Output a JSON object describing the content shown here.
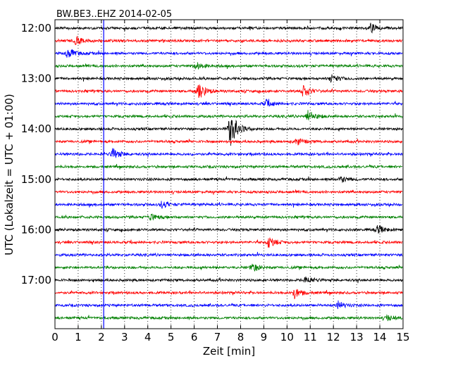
{
  "chart_data": {
    "type": "line",
    "title": "BW.BE3..EHZ 2014-02-05",
    "xlabel": "Zeit  [min]",
    "ylabel": "UTC (Lokalzeit = UTC + 01:00)",
    "xlim": [
      0,
      15
    ],
    "x_ticks": [
      "0",
      "1",
      "2",
      "3",
      "4",
      "5",
      "6",
      "7",
      "8",
      "9",
      "10",
      "11",
      "12",
      "13",
      "14",
      "15"
    ],
    "y_tick_labels": [
      "12:00",
      "13:00",
      "14:00",
      "15:00",
      "16:00",
      "17:00"
    ],
    "grid": "vertical dotted",
    "trace_colors": [
      "#000000",
      "#ff0000",
      "#0000ff",
      "#008000"
    ],
    "trace_start_times": [
      "12:00",
      "12:15",
      "12:30",
      "12:45",
      "13:00",
      "13:15",
      "13:30",
      "13:45",
      "14:00",
      "14:15",
      "14:30",
      "14:45",
      "15:00",
      "15:15",
      "15:30",
      "15:45",
      "16:00",
      "16:15",
      "16:30",
      "16:45",
      "17:00",
      "17:15",
      "17:30",
      "17:45"
    ],
    "marker_line_x": 2.1,
    "marker_line_color": "#0000ff",
    "events": [
      {
        "trace": 0,
        "x": 13.6,
        "amp": 0.35
      },
      {
        "trace": 1,
        "x": 0.9,
        "amp": 0.35
      },
      {
        "trace": 2,
        "x": 0.55,
        "amp": 0.45
      },
      {
        "trace": 3,
        "x": 6.1,
        "amp": 0.3
      },
      {
        "trace": 4,
        "x": 11.9,
        "amp": 0.35
      },
      {
        "trace": 5,
        "x": 6.2,
        "amp": 0.7
      },
      {
        "trace": 5,
        "x": 10.7,
        "amp": 0.5
      },
      {
        "trace": 6,
        "x": 9.1,
        "amp": 0.3
      },
      {
        "trace": 7,
        "x": 10.9,
        "amp": 0.5
      },
      {
        "trace": 8,
        "x": 7.55,
        "amp": 1.6
      },
      {
        "trace": 9,
        "x": 10.4,
        "amp": 0.3
      },
      {
        "trace": 10,
        "x": 2.5,
        "amp": 0.45
      },
      {
        "trace": 12,
        "x": 12.3,
        "amp": 0.25
      },
      {
        "trace": 14,
        "x": 4.6,
        "amp": 0.3
      },
      {
        "trace": 15,
        "x": 4.1,
        "amp": 0.3
      },
      {
        "trace": 16,
        "x": 13.9,
        "amp": 0.35
      },
      {
        "trace": 17,
        "x": 9.2,
        "amp": 0.45
      },
      {
        "trace": 19,
        "x": 8.5,
        "amp": 0.35
      },
      {
        "trace": 20,
        "x": 10.8,
        "amp": 0.3
      },
      {
        "trace": 21,
        "x": 10.3,
        "amp": 0.45
      },
      {
        "trace": 22,
        "x": 12.2,
        "amp": 0.3
      },
      {
        "trace": 23,
        "x": 14.3,
        "amp": 0.25
      }
    ]
  }
}
